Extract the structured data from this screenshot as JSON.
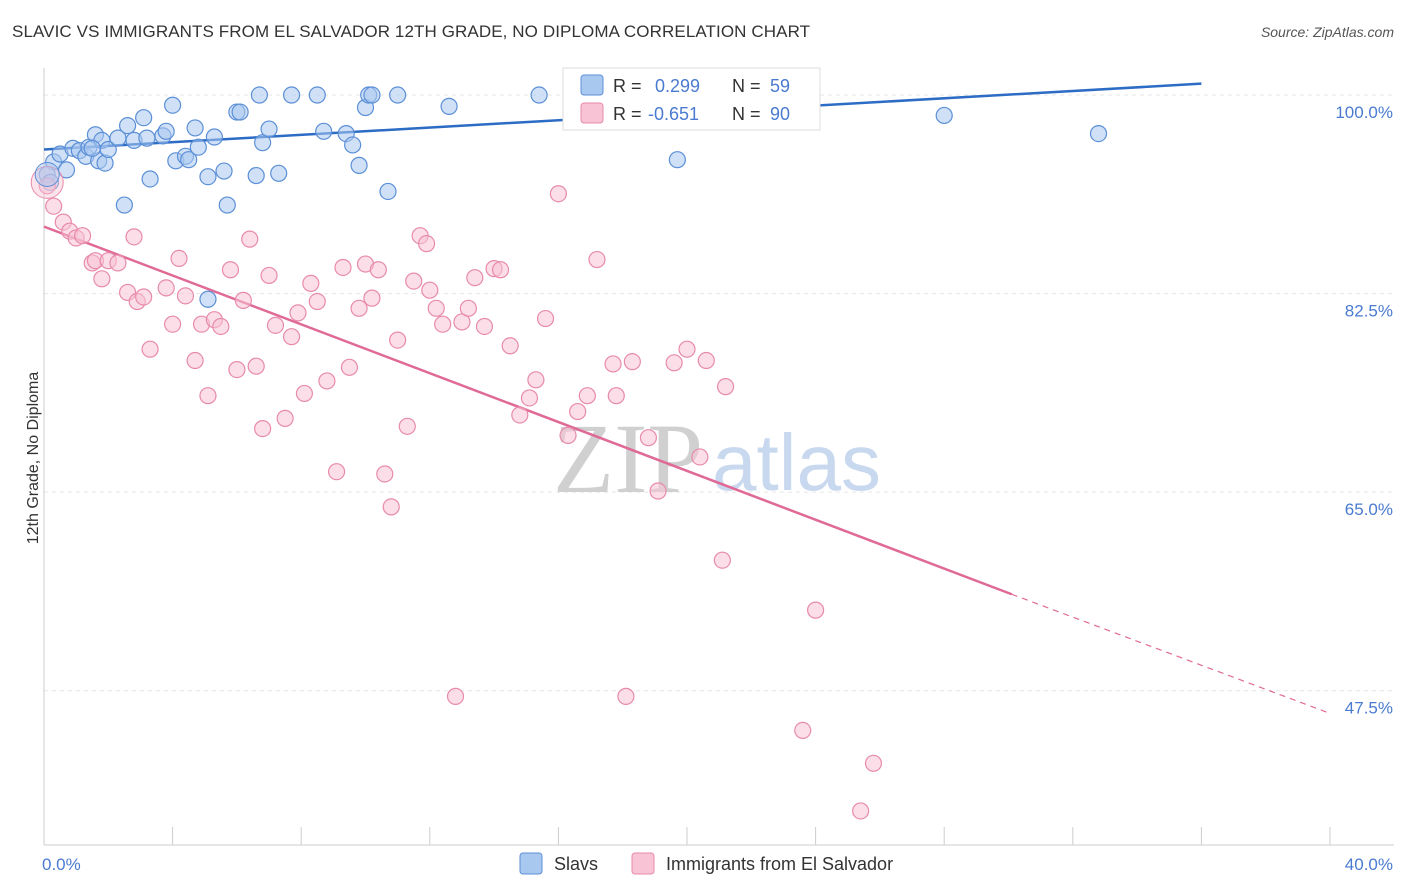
{
  "title": "SLAVIC VS IMMIGRANTS FROM EL SALVADOR 12TH GRADE, NO DIPLOMA CORRELATION CHART",
  "source": "Source: ZipAtlas.com",
  "watermark": {
    "zip": "ZIP",
    "atlas": "atlas"
  },
  "colors": {
    "slavs_fill": "#a9c8f0",
    "slavs_stroke": "#5b8fd6",
    "slavs_line": "#2d6cc5",
    "salv_fill": "#f7c3d5",
    "salv_stroke": "#e88aab",
    "salv_line": "#e06a96",
    "grid": "#e6e6e6",
    "axis_text": "#4a7bd0"
  },
  "legend": {
    "row1": {
      "r_label": "R =",
      "r_value": "0.299",
      "n_label": "N =",
      "n_value": "59"
    },
    "row2": {
      "r_label": "R =",
      "r_value": "-0.651",
      "n_label": "N =",
      "n_value": "90"
    }
  },
  "chart_data": {
    "type": "scatter",
    "xlabel": "",
    "ylabel": "12th Grade, No Diploma",
    "xlim": [
      0,
      40
    ],
    "ylim": [
      33.9,
      101.5
    ],
    "x_tick_labels": [
      "0.0%",
      "40.0%"
    ],
    "y_ticks": [
      47.5,
      65.0,
      82.5,
      100.0
    ],
    "y_tick_labels": [
      "47.5%",
      "65.0%",
      "82.5%",
      "100.0%"
    ],
    "grid": true,
    "legend_position": "top-center",
    "series": [
      {
        "name": "Slavs",
        "trend": {
          "x": [
            0.0,
            36.0
          ],
          "y": [
            95.2,
            101.0
          ],
          "dashed_from": null
        },
        "points": [
          [
            0.3,
            94.1
          ],
          [
            0.5,
            94.8
          ],
          [
            0.7,
            93.4
          ],
          [
            0.9,
            95.3
          ],
          [
            1.1,
            95.1
          ],
          [
            1.3,
            94.6
          ],
          [
            1.4,
            95.4
          ],
          [
            1.6,
            96.5
          ],
          [
            1.7,
            94.2
          ],
          [
            1.8,
            96.0
          ],
          [
            1.9,
            94.0
          ],
          [
            2.0,
            95.2
          ],
          [
            2.3,
            96.2
          ],
          [
            2.6,
            97.3
          ],
          [
            2.8,
            96.0
          ],
          [
            3.1,
            98.0
          ],
          [
            3.2,
            96.2
          ],
          [
            3.3,
            92.6
          ],
          [
            3.7,
            96.4
          ],
          [
            3.8,
            96.8
          ],
          [
            4.0,
            99.1
          ],
          [
            4.1,
            94.2
          ],
          [
            4.4,
            94.6
          ],
          [
            4.5,
            94.3
          ],
          [
            4.8,
            95.4
          ],
          [
            4.7,
            97.1
          ],
          [
            5.1,
            92.8
          ],
          [
            5.3,
            96.3
          ],
          [
            5.6,
            93.3
          ],
          [
            5.7,
            90.3
          ],
          [
            6.0,
            98.5
          ],
          [
            6.1,
            98.5
          ],
          [
            6.6,
            92.9
          ],
          [
            6.8,
            95.8
          ],
          [
            7.0,
            97.0
          ],
          [
            7.3,
            93.1
          ],
          [
            6.7,
            100.0
          ],
          [
            7.7,
            100.0
          ],
          [
            8.5,
            100.0
          ],
          [
            8.7,
            96.8
          ],
          [
            9.4,
            96.6
          ],
          [
            9.6,
            95.6
          ],
          [
            9.8,
            93.8
          ],
          [
            10.0,
            98.9
          ],
          [
            10.1,
            100.0
          ],
          [
            10.2,
            100.0
          ],
          [
            10.7,
            91.5
          ],
          [
            11.0,
            100.0
          ],
          [
            12.6,
            99.0
          ],
          [
            15.4,
            100.0
          ],
          [
            17.0,
            100.0
          ],
          [
            19.7,
            94.3
          ],
          [
            28.0,
            98.2
          ],
          [
            32.8,
            96.6
          ],
          [
            5.1,
            82.0
          ],
          [
            2.5,
            90.3
          ],
          [
            1.5,
            95.3
          ],
          [
            0.1,
            93.0
          ],
          [
            0.2,
            92.3
          ]
        ]
      },
      {
        "name": "Immigrants from El Salvador",
        "trend": {
          "x": [
            0.0,
            30.1
          ],
          "y": [
            88.4,
            56.0
          ],
          "dashed_to": {
            "x": 40.0,
            "y": 45.5
          }
        },
        "points": [
          [
            0.1,
            92.0
          ],
          [
            0.3,
            90.2
          ],
          [
            0.6,
            88.8
          ],
          [
            0.8,
            88.0
          ],
          [
            1.0,
            87.4
          ],
          [
            1.2,
            87.6
          ],
          [
            1.5,
            85.2
          ],
          [
            1.6,
            85.4
          ],
          [
            1.8,
            83.8
          ],
          [
            2.0,
            85.4
          ],
          [
            2.3,
            85.2
          ],
          [
            2.6,
            82.6
          ],
          [
            2.8,
            87.5
          ],
          [
            2.9,
            81.8
          ],
          [
            3.1,
            82.2
          ],
          [
            3.3,
            77.6
          ],
          [
            3.8,
            83.0
          ],
          [
            4.0,
            79.8
          ],
          [
            4.2,
            85.6
          ],
          [
            4.4,
            82.3
          ],
          [
            4.7,
            76.6
          ],
          [
            4.9,
            79.8
          ],
          [
            5.1,
            73.5
          ],
          [
            5.3,
            80.2
          ],
          [
            5.5,
            79.6
          ],
          [
            5.8,
            84.6
          ],
          [
            6.0,
            75.8
          ],
          [
            6.2,
            81.9
          ],
          [
            6.4,
            87.3
          ],
          [
            6.6,
            76.1
          ],
          [
            6.8,
            70.6
          ],
          [
            7.0,
            84.1
          ],
          [
            7.2,
            79.7
          ],
          [
            7.5,
            71.5
          ],
          [
            7.7,
            78.7
          ],
          [
            7.9,
            80.8
          ],
          [
            8.1,
            73.7
          ],
          [
            8.3,
            83.4
          ],
          [
            8.5,
            81.8
          ],
          [
            8.8,
            74.8
          ],
          [
            9.1,
            66.8
          ],
          [
            9.3,
            84.8
          ],
          [
            9.5,
            76.0
          ],
          [
            9.8,
            81.2
          ],
          [
            10.0,
            85.1
          ],
          [
            10.2,
            82.1
          ],
          [
            10.4,
            84.6
          ],
          [
            10.6,
            66.6
          ],
          [
            10.8,
            63.7
          ],
          [
            11.0,
            78.4
          ],
          [
            11.3,
            70.8
          ],
          [
            11.5,
            83.6
          ],
          [
            11.7,
            87.6
          ],
          [
            11.9,
            86.9
          ],
          [
            12.0,
            82.8
          ],
          [
            12.2,
            81.2
          ],
          [
            12.4,
            79.8
          ],
          [
            12.8,
            47.0
          ],
          [
            13.0,
            80.0
          ],
          [
            13.2,
            81.2
          ],
          [
            13.4,
            83.9
          ],
          [
            13.7,
            79.6
          ],
          [
            14.0,
            84.7
          ],
          [
            14.2,
            84.6
          ],
          [
            14.5,
            77.9
          ],
          [
            14.8,
            71.8
          ],
          [
            15.1,
            73.3
          ],
          [
            15.3,
            74.9
          ],
          [
            15.6,
            80.3
          ],
          [
            16.0,
            91.3
          ],
          [
            16.3,
            70.0
          ],
          [
            16.6,
            72.1
          ],
          [
            16.9,
            73.5
          ],
          [
            17.2,
            85.5
          ],
          [
            17.7,
            76.3
          ],
          [
            17.8,
            73.5
          ],
          [
            18.1,
            47.0
          ],
          [
            18.3,
            76.5
          ],
          [
            18.8,
            69.8
          ],
          [
            19.1,
            65.1
          ],
          [
            19.6,
            76.4
          ],
          [
            20.0,
            77.6
          ],
          [
            20.4,
            68.1
          ],
          [
            20.6,
            76.6
          ],
          [
            21.1,
            59.0
          ],
          [
            21.2,
            74.3
          ],
          [
            23.6,
            44.0
          ],
          [
            24.0,
            54.6
          ],
          [
            25.4,
            36.9
          ],
          [
            25.8,
            41.1
          ]
        ]
      }
    ]
  },
  "bottom_legend": [
    "Slavs",
    "Immigrants from El Salvador"
  ]
}
